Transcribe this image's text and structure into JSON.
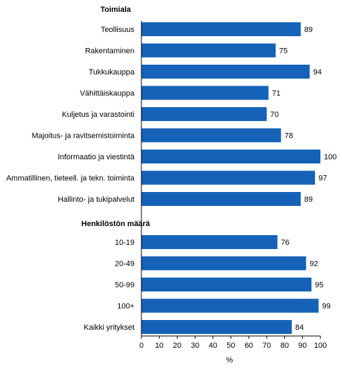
{
  "chart_data": {
    "type": "bar",
    "orientation": "horizontal",
    "groups": [
      {
        "title": "Toimiala",
        "categories": [
          "Teollisuus",
          "Rakentaminen",
          "Tukkukauppa",
          "Vähittäiskauppa",
          "Kuljetus ja varastointi",
          "Majoitus- ja ravitsemistoiminta",
          "Informaatio ja viestintä",
          "Ammatillinen, tieteell. ja tekn. toiminta",
          "Hallinto- ja tukipalvelut"
        ],
        "values": [
          89,
          75,
          94,
          71,
          70,
          78,
          100,
          97,
          89
        ]
      },
      {
        "title": "Henkilöstön määrä",
        "categories": [
          "10-19",
          "20-49",
          "50-99",
          "100+",
          "Kaikki yritykset"
        ],
        "values": [
          76,
          92,
          95,
          99,
          84
        ]
      }
    ],
    "xlabel": "%",
    "xlim": [
      0,
      100
    ],
    "xticks": [
      0,
      10,
      20,
      30,
      40,
      50,
      60,
      70,
      80,
      90,
      100
    ],
    "grid": false,
    "bar_color": "#1562b8"
  }
}
